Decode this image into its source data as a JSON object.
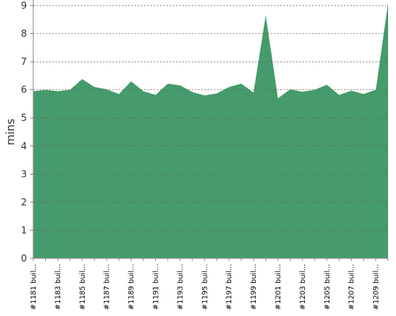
{
  "chart_data": {
    "type": "area",
    "y_label": "mins",
    "categories": [
      "#1181 buil...",
      null,
      "#1183 buil...",
      null,
      "#1185 buil...",
      null,
      "#1187 buil...",
      null,
      "#1189 buil...",
      null,
      "#1191 buil...",
      null,
      "#1193 buil...",
      null,
      "#1195 buil...",
      null,
      "#1197 buil...",
      null,
      "#1199 buil...",
      null,
      "#1201 buil...",
      null,
      "#1203 buil...",
      null,
      "#1205 buil...",
      null,
      "#1207 buil...",
      null,
      "#1209 buil...",
      null
    ],
    "values": [
      5.95,
      6.0,
      5.95,
      6.0,
      6.38,
      6.1,
      6.02,
      5.85,
      6.3,
      5.95,
      5.82,
      6.22,
      6.16,
      5.92,
      5.8,
      5.87,
      6.1,
      6.22,
      5.9,
      8.65,
      5.7,
      6.02,
      5.93,
      6.0,
      6.18,
      5.82,
      5.97,
      5.85,
      6.0,
      9.1
    ],
    "color": "#459b6b",
    "ylim": [
      0,
      9
    ],
    "yticks": [
      0,
      1,
      2,
      3,
      4,
      5,
      6,
      7,
      8,
      9
    ],
    "grid": true
  }
}
